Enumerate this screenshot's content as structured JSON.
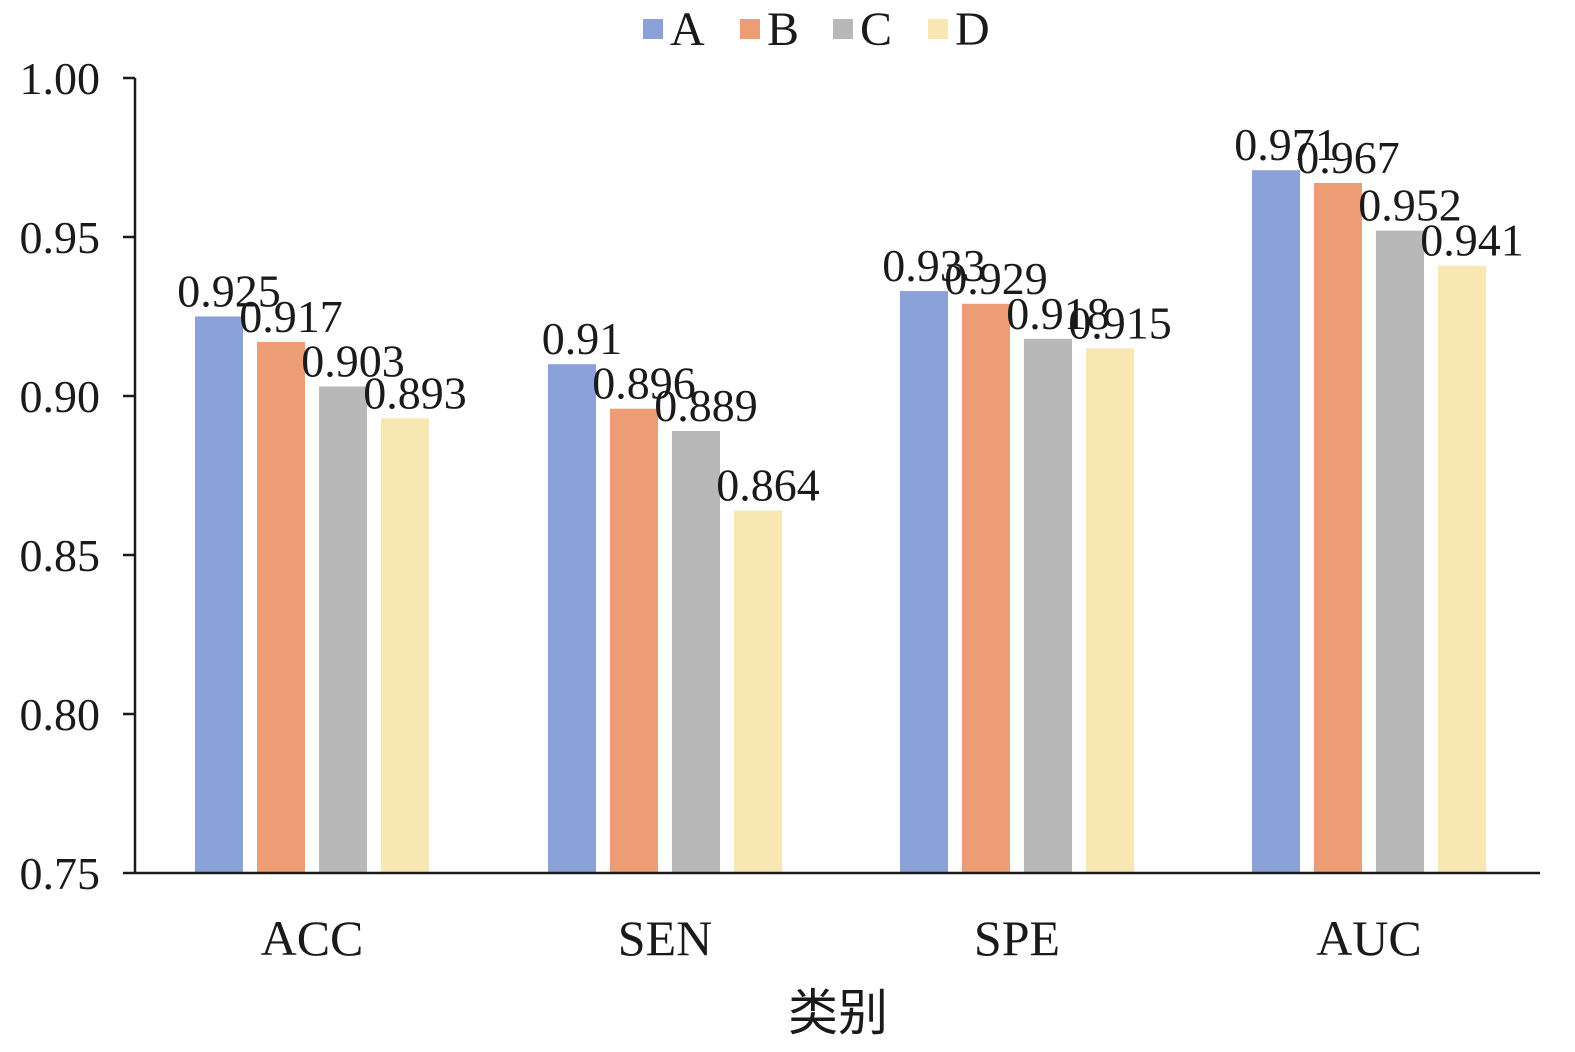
{
  "chart_data": {
    "type": "bar",
    "title": "",
    "xlabel": "类别",
    "ylabel": "",
    "ylim": [
      0.75,
      1.0
    ],
    "yticks": [
      "0.75",
      "0.80",
      "0.85",
      "0.90",
      "0.95",
      "1.00"
    ],
    "categories": [
      "ACC",
      "SEN",
      "SPE",
      "AUC"
    ],
    "legend_position": "top-center",
    "grid": false,
    "series": [
      {
        "name": "A",
        "color": "#8aa2d8",
        "values": [
          0.925,
          0.91,
          0.933,
          0.971
        ],
        "labels": [
          "0.925",
          "0.91",
          "0.933",
          "0.971"
        ]
      },
      {
        "name": "B",
        "color": "#ec9d74",
        "values": [
          0.917,
          0.896,
          0.929,
          0.967
        ],
        "labels": [
          "0.917",
          "0.896",
          "0.929",
          "0.967"
        ]
      },
      {
        "name": "C",
        "color": "#b8b8b8",
        "values": [
          0.903,
          0.889,
          0.918,
          0.952
        ],
        "labels": [
          "0.903",
          "0.889",
          "0.918",
          "0.952"
        ]
      },
      {
        "name": "D",
        "color": "#f8e7b3",
        "values": [
          0.893,
          0.864,
          0.915,
          0.941
        ],
        "labels": [
          "0.893",
          "0.864",
          "0.915",
          "0.941"
        ]
      }
    ]
  }
}
